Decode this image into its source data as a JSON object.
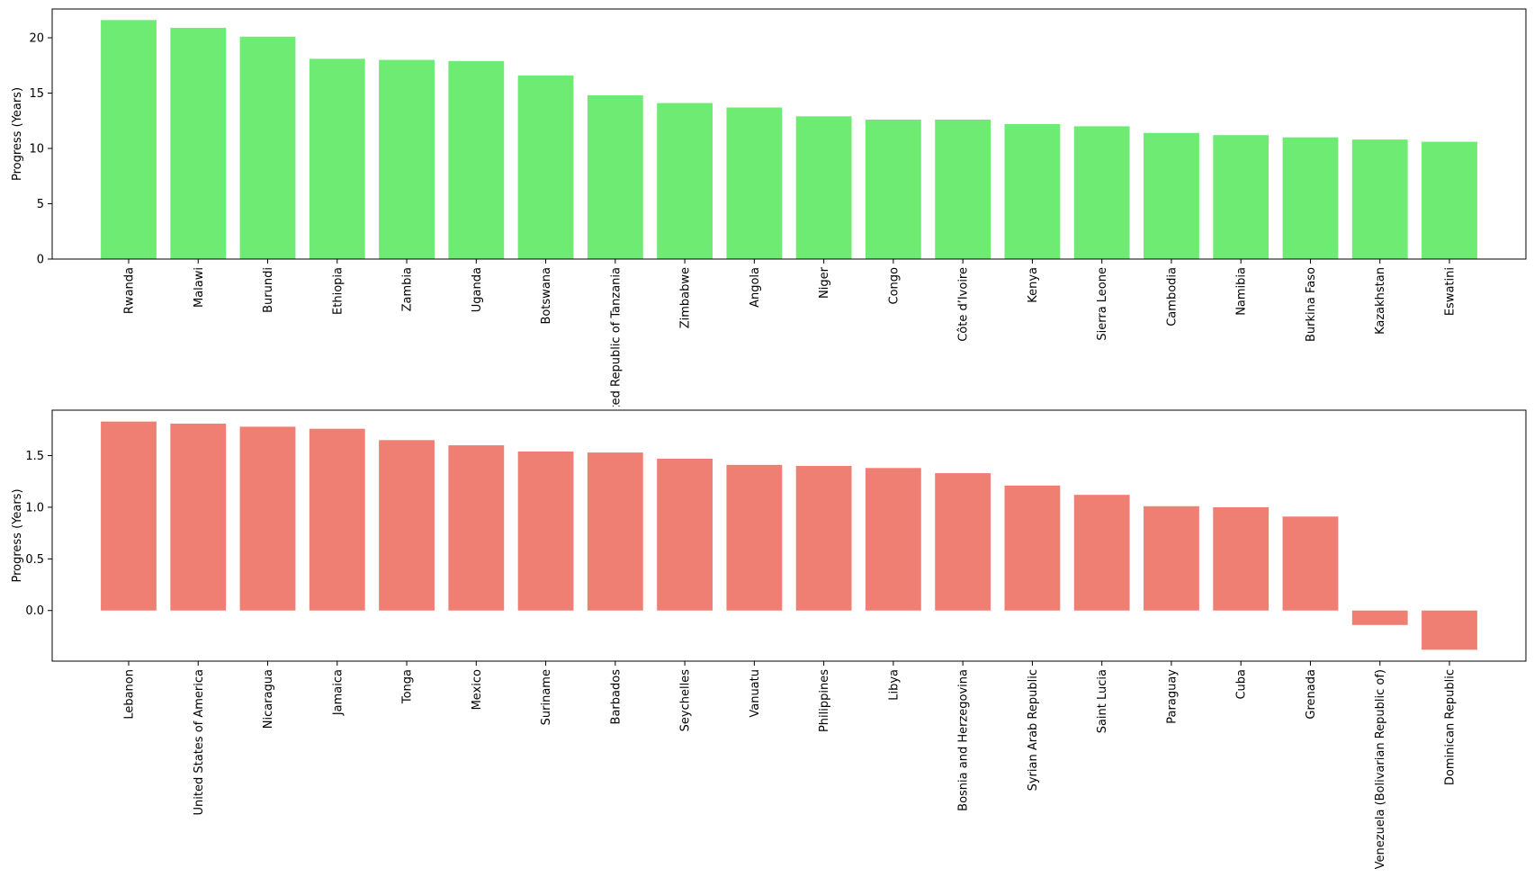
{
  "chart_data": [
    {
      "type": "bar",
      "title": "",
      "xlabel": "",
      "ylabel": "Progress (Years)",
      "ylim": [
        0,
        22.6
      ],
      "yticks": [
        0,
        5,
        10,
        15,
        20
      ],
      "ytick_labels": [
        "0",
        "5",
        "10",
        "15",
        "20"
      ],
      "color": "#6eeb73",
      "grid": false,
      "categories": [
        "Rwanda",
        "Malawi",
        "Burundi",
        "Ethiopia",
        "Zambia",
        "Uganda",
        "Botswana",
        "United Republic of Tanzania",
        "Zimbabwe",
        "Angola",
        "Niger",
        "Congo",
        "Côte d’Ivoire",
        "Kenya",
        "Sierra Leone",
        "Cambodia",
        "Namibia",
        "Burkina Faso",
        "Kazakhstan",
        "Eswatini"
      ],
      "values": [
        21.6,
        20.9,
        20.1,
        18.1,
        18.0,
        17.9,
        16.6,
        14.8,
        14.1,
        13.7,
        12.9,
        12.6,
        12.6,
        12.2,
        12.0,
        11.4,
        11.2,
        11.0,
        10.8,
        10.6
      ]
    },
    {
      "type": "bar",
      "title": "",
      "xlabel": "",
      "ylabel": "Progress (Years)",
      "ylim": [
        -0.49,
        1.94
      ],
      "yticks": [
        0.0,
        0.5,
        1.0,
        1.5
      ],
      "ytick_labels": [
        "0.0",
        "0.5",
        "1.0",
        "1.5"
      ],
      "color": "#f07f73",
      "grid": false,
      "categories": [
        "Lebanon",
        "United States of America",
        "Nicaragua",
        "Jamaica",
        "Tonga",
        "Mexico",
        "Suriname",
        "Barbados",
        "Seychelles",
        "Vanuatu",
        "Philippines",
        "Libya",
        "Bosnia and Herzegovina",
        "Syrian Arab Republic",
        "Saint Lucia",
        "Paraguay",
        "Cuba",
        "Grenada",
        "Venezuela (Bolivarian Republic of)",
        "Dominican Republic"
      ],
      "values": [
        1.83,
        1.81,
        1.78,
        1.76,
        1.65,
        1.6,
        1.54,
        1.53,
        1.47,
        1.41,
        1.4,
        1.38,
        1.33,
        1.21,
        1.12,
        1.01,
        1.0,
        0.91,
        -0.14,
        -0.38
      ]
    }
  ]
}
